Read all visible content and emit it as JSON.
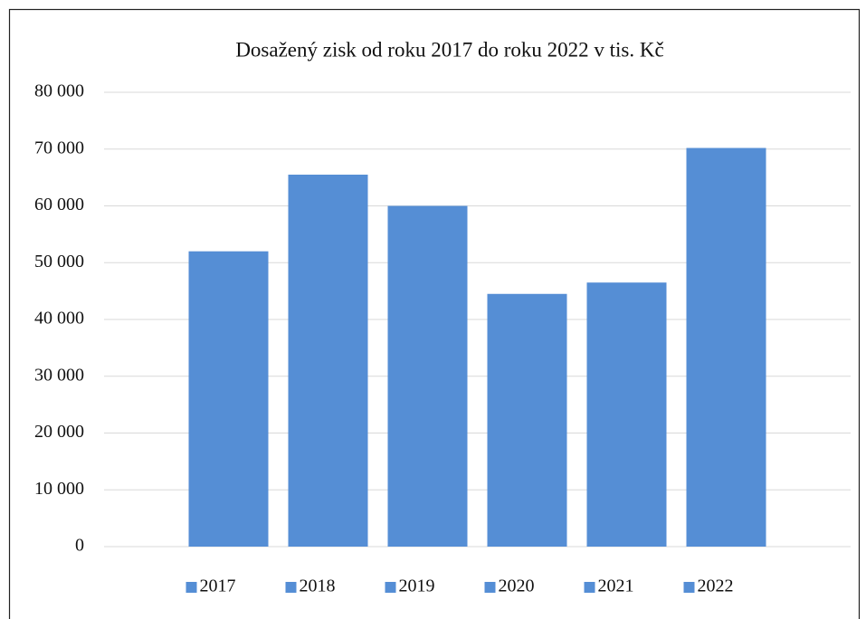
{
  "chart_data": {
    "type": "bar",
    "title": "Dosažený zisk od roku 2017 do roku 2022 v tis. Kč",
    "categories": [
      null
    ],
    "series": [
      {
        "name": "2017",
        "color": "#558ed5",
        "values": [
          52000
        ]
      },
      {
        "name": "2018",
        "color": "#558ed5",
        "values": [
          65500
        ]
      },
      {
        "name": "2019",
        "color": "#558ed5",
        "values": [
          60000
        ]
      },
      {
        "name": "2020",
        "color": "#558ed5",
        "values": [
          44500
        ]
      },
      {
        "name": "2021",
        "color": "#558ed5",
        "values": [
          46500
        ]
      },
      {
        "name": "2022",
        "color": "#558ed5",
        "values": [
          70200
        ]
      }
    ],
    "ylim": [
      0,
      80000
    ],
    "yticks": [
      0,
      {
        "value": 10000,
        "label": "10 000"
      },
      {
        "value": 20000,
        "label": "20 000"
      },
      {
        "value": 30000,
        "label": "30 000"
      },
      {
        "value": 40000,
        "label": "40 000"
      },
      {
        "value": 50000,
        "label": "50 000"
      },
      {
        "value": 60000,
        "label": "60 000"
      },
      {
        "value": 70000,
        "label": "70 000"
      },
      {
        "value": 80000,
        "label": "80 000"
      }
    ],
    "grid": true,
    "legend": "bottom"
  }
}
